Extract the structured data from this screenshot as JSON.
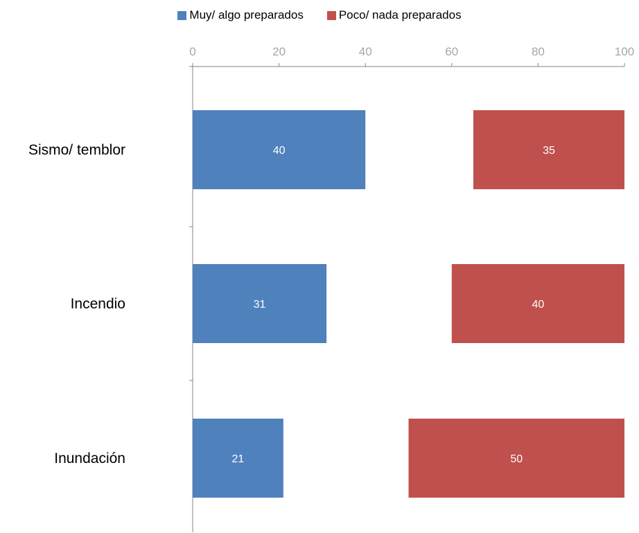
{
  "chart_data": {
    "type": "bar",
    "orientation": "horizontal",
    "layout": "left series anchored at 0, right series anchored at 100",
    "categories": [
      "Sismo/ temblor",
      "Incendio",
      "Inundación"
    ],
    "series": [
      {
        "name": "Muy/ algo preparados",
        "values": [
          40,
          31,
          21
        ],
        "color": "#4F81BD",
        "anchor": "left"
      },
      {
        "name": "Poco/ nada preparados",
        "values": [
          35,
          40,
          50
        ],
        "color": "#C0504D",
        "anchor": "right"
      }
    ],
    "xlim": [
      0,
      100
    ],
    "xticks": [
      0,
      20,
      40,
      60,
      80,
      100
    ],
    "x_axis_position": "top",
    "grid": false,
    "legend_position": "top-center",
    "data_label_color": "#FFFFFF",
    "tick_label_color": "#A6A6A6",
    "axis_color": "#868686"
  }
}
